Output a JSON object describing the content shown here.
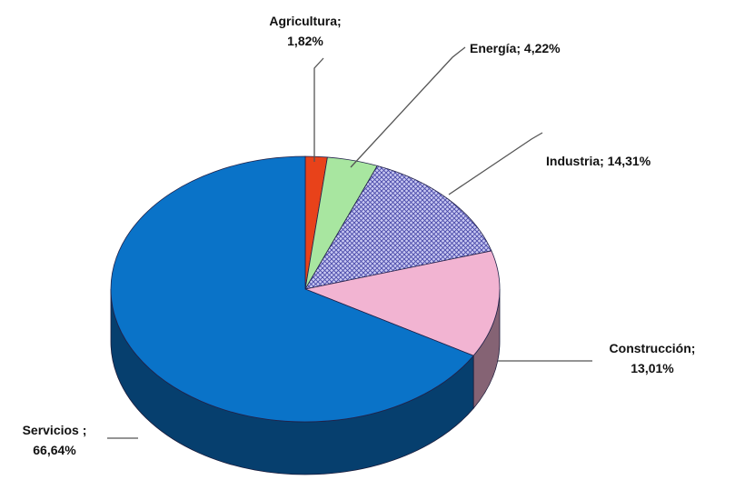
{
  "chart_data": {
    "type": "pie",
    "style": "3d",
    "slices": [
      {
        "name": "Agricultura",
        "value": 1.82,
        "label_line1": "Agricultura;",
        "label_line2": "1,82%",
        "color": "#E8421A",
        "pattern": "none"
      },
      {
        "name": "Energía",
        "value": 4.22,
        "label_line1": "Energía; 4,22%",
        "label_line2": "",
        "color": "#A8E6A0",
        "pattern": "none"
      },
      {
        "name": "Industria",
        "value": 14.31,
        "label_line1": "Industria; 14,31%",
        "label_line2": "",
        "color": "#B9B9EC",
        "pattern": "crosshatch"
      },
      {
        "name": "Construcción",
        "value": 13.01,
        "label_line1": "Construcción;",
        "label_line2": "13,01%",
        "color": "#F2B4D2",
        "pattern": "none"
      },
      {
        "name": "Servicios",
        "value": 66.64,
        "label_line1": "Servicios ;",
        "label_line2": "66,64%",
        "color": "#0A73C8",
        "pattern": "none"
      }
    ],
    "legend": "none"
  }
}
